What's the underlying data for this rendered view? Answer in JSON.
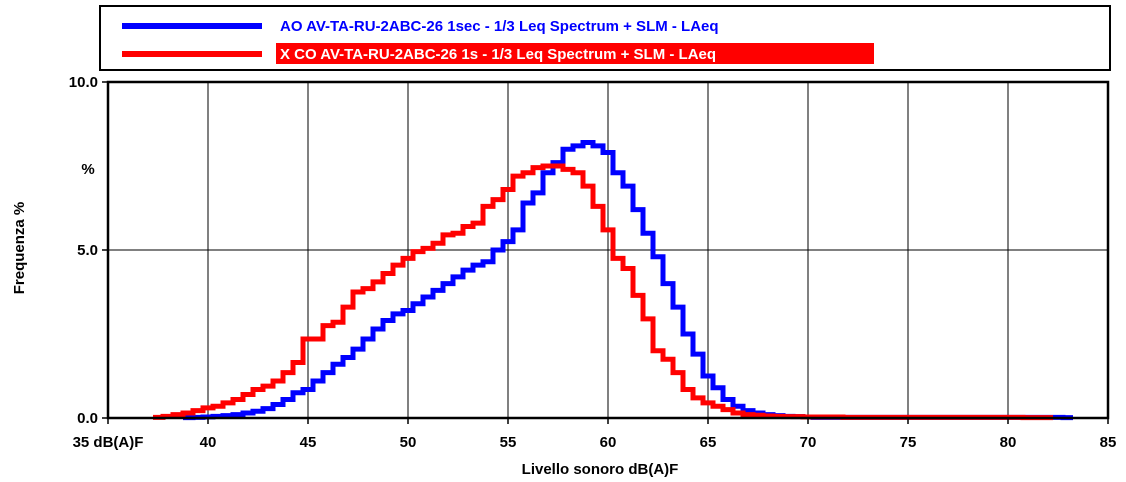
{
  "chart_data": {
    "type": "line",
    "step": true,
    "xlabel": "Livello sonoro dB(A)F",
    "ylabel": "Frequenza %",
    "yunit_label": "%",
    "xlim": [
      35,
      85
    ],
    "ylim": [
      0,
      10
    ],
    "x_ticks": [
      "35 dB(A)F",
      "40",
      "45",
      "50",
      "55",
      "60",
      "65",
      "70",
      "75",
      "80",
      "85"
    ],
    "x_tick_values": [
      35,
      40,
      45,
      50,
      55,
      60,
      65,
      70,
      75,
      80,
      85
    ],
    "y_ticks": [
      "0.0",
      "5.0",
      "10.0"
    ],
    "y_tick_values": [
      0,
      5,
      10
    ],
    "grid": true,
    "legend_position": "top",
    "series": [
      {
        "name": "AO AV-TA-RU-2ABC-26 1sec - 1/3 Leq Spectrum + SLM - LAeq",
        "color": "#0000ff",
        "label_background": "#ffffff",
        "bin_width": 0.5,
        "x": [
          39.0,
          39.5,
          40.0,
          40.5,
          41.0,
          41.5,
          42.0,
          42.5,
          43.0,
          43.5,
          44.0,
          44.5,
          45.0,
          45.5,
          46.0,
          46.5,
          47.0,
          47.5,
          48.0,
          48.5,
          49.0,
          49.5,
          50.0,
          50.5,
          51.0,
          51.5,
          52.0,
          52.5,
          53.0,
          53.5,
          54.0,
          54.5,
          55.0,
          55.5,
          56.0,
          56.5,
          57.0,
          57.5,
          58.0,
          58.5,
          59.0,
          59.5,
          60.0,
          60.5,
          61.0,
          61.5,
          62.0,
          62.5,
          63.0,
          63.5,
          64.0,
          64.5,
          65.0,
          65.5,
          66.0,
          66.5,
          67.0,
          67.5,
          68.0,
          68.5,
          69.0,
          69.5,
          70.0,
          70.5,
          71.0,
          71.5,
          72.0,
          72.5,
          73.0,
          73.5,
          74.0,
          74.5,
          75.0,
          75.5,
          76.0,
          76.5,
          77.0,
          77.5,
          78.0,
          78.5,
          79.0,
          79.5,
          80.0,
          80.5,
          81.0,
          81.5,
          82.0,
          82.5,
          83.0
        ],
        "values": [
          0.01,
          0.02,
          0.03,
          0.05,
          0.07,
          0.1,
          0.15,
          0.2,
          0.28,
          0.4,
          0.55,
          0.75,
          0.85,
          1.1,
          1.35,
          1.6,
          1.8,
          2.05,
          2.35,
          2.65,
          2.9,
          3.1,
          3.2,
          3.4,
          3.6,
          3.8,
          4.0,
          4.2,
          4.4,
          4.55,
          4.65,
          5.0,
          5.25,
          5.6,
          6.4,
          6.7,
          7.3,
          7.6,
          8.0,
          8.1,
          8.2,
          8.1,
          7.9,
          7.3,
          6.9,
          6.2,
          5.5,
          4.8,
          4.0,
          3.3,
          2.5,
          1.9,
          1.25,
          0.9,
          0.55,
          0.35,
          0.22,
          0.15,
          0.1,
          0.07,
          0.05,
          0.04,
          0.03,
          0.02,
          0.02,
          0.02,
          0.02,
          0.02,
          0.02,
          0.02,
          0.02,
          0.02,
          0.02,
          0.02,
          0.02,
          0.02,
          0.02,
          0.02,
          0.02,
          0.02,
          0.02,
          0.02,
          0.02,
          0.02,
          0.02,
          0.02,
          0.02,
          0.02,
          0.01
        ]
      },
      {
        "name": "X CO AV-TA-RU-2ABC-26 1s - 1/3 Leq Spectrum + SLM - LAeq",
        "color": "#ff0000",
        "label_background": "#ff0000",
        "bin_width": 0.5,
        "x": [
          37.5,
          38.0,
          38.5,
          39.0,
          39.5,
          40.0,
          40.5,
          41.0,
          41.5,
          42.0,
          42.5,
          43.0,
          43.5,
          44.0,
          44.5,
          45.0,
          45.5,
          46.0,
          46.5,
          47.0,
          47.5,
          48.0,
          48.5,
          49.0,
          49.5,
          50.0,
          50.5,
          51.0,
          51.5,
          52.0,
          52.5,
          53.0,
          53.5,
          54.0,
          54.5,
          55.0,
          55.5,
          56.0,
          56.5,
          57.0,
          57.5,
          58.0,
          58.5,
          59.0,
          59.5,
          60.0,
          60.5,
          61.0,
          61.5,
          62.0,
          62.5,
          63.0,
          63.5,
          64.0,
          64.5,
          65.0,
          65.5,
          66.0,
          66.5,
          67.0,
          67.5,
          68.0,
          68.5,
          69.0,
          69.5,
          70.0,
          70.5,
          71.0,
          71.5,
          72.0,
          72.5,
          73.0,
          73.5,
          74.0,
          74.5,
          75.0,
          75.5,
          76.0,
          76.5,
          77.0,
          77.5,
          78.0,
          78.5,
          79.0,
          79.5,
          80.0,
          80.5,
          81.0,
          81.5,
          82.0
        ],
        "values": [
          0.02,
          0.05,
          0.1,
          0.15,
          0.22,
          0.3,
          0.35,
          0.45,
          0.55,
          0.7,
          0.85,
          0.95,
          1.1,
          1.35,
          1.65,
          2.35,
          2.35,
          2.75,
          2.85,
          3.3,
          3.75,
          3.85,
          4.05,
          4.3,
          4.55,
          4.75,
          4.95,
          5.05,
          5.2,
          5.45,
          5.5,
          5.7,
          5.8,
          6.3,
          6.5,
          6.8,
          7.2,
          7.3,
          7.45,
          7.5,
          7.5,
          7.4,
          7.3,
          6.9,
          6.3,
          5.6,
          4.75,
          4.45,
          3.65,
          2.95,
          2.0,
          1.75,
          1.35,
          0.85,
          0.6,
          0.45,
          0.35,
          0.25,
          0.15,
          0.1,
          0.08,
          0.06,
          0.05,
          0.04,
          0.04,
          0.03,
          0.03,
          0.03,
          0.03,
          0.02,
          0.02,
          0.02,
          0.02,
          0.02,
          0.02,
          0.02,
          0.02,
          0.02,
          0.02,
          0.02,
          0.02,
          0.02,
          0.02,
          0.02,
          0.02,
          0.02,
          0.02,
          0.01,
          0.01,
          0.01
        ]
      }
    ]
  }
}
